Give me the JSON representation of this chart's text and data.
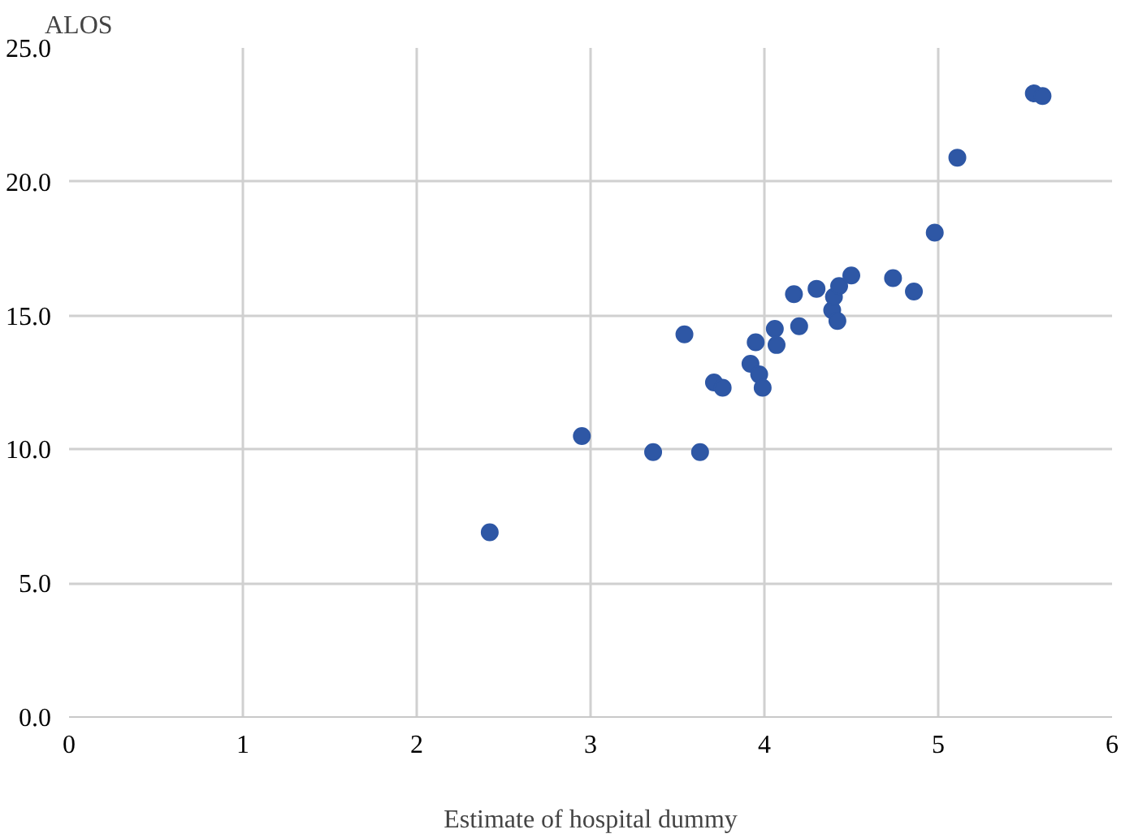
{
  "chart_data": {
    "type": "scatter",
    "xlabel": "Estimate of hospital dummy",
    "ylabel": "ALOS",
    "xlim": [
      0,
      6
    ],
    "xticks": [
      0,
      1,
      2,
      3,
      4,
      5,
      6
    ],
    "ylim": [
      0,
      25
    ],
    "yticks": [
      {
        "value": 0,
        "label": "0.0"
      },
      {
        "value": 5,
        "label": "5.0"
      },
      {
        "value": 10,
        "label": "10.0"
      },
      {
        "value": 15,
        "label": "15.0"
      },
      {
        "value": 20,
        "label": "20.0"
      },
      {
        "value": 25,
        "label": "25.0"
      }
    ],
    "grid": true,
    "marker": "circle",
    "series": [
      {
        "color": "#2e57a5",
        "x": [
          2.42,
          2.95,
          3.36,
          3.63,
          3.54,
          3.71,
          3.76,
          3.92,
          3.95,
          3.97,
          3.99,
          4.06,
          4.07,
          4.17,
          4.2,
          4.3,
          4.37,
          4.39,
          4.4,
          4.42,
          4.43,
          4.5,
          4.74,
          4.86,
          4.98,
          5.11,
          5.55,
          5.6
        ],
        "values": [
          6.9,
          10.5,
          9.9,
          9.9,
          14.3,
          12.5,
          12.3,
          13.2,
          14.0,
          12.8,
          12.3,
          14.5,
          13.9,
          15.8,
          14.6,
          16.0,
          null,
          15.2,
          15.7,
          14.8,
          16.1,
          16.5,
          16.4,
          15.9,
          18.1,
          20.9,
          23.3,
          23.2
        ]
      }
    ]
  }
}
